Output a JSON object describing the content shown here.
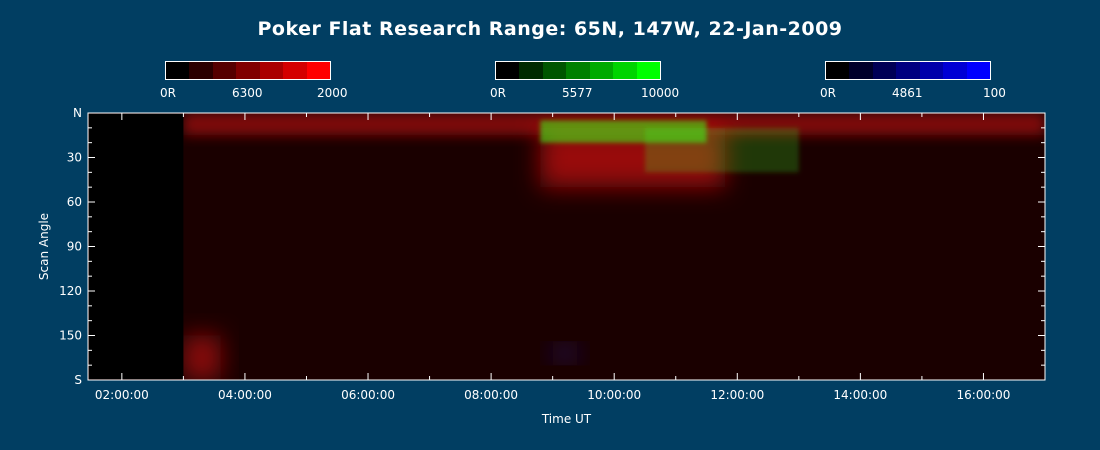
{
  "title": "Poker Flat Research Range: 65N, 147W, 22-Jan-2009",
  "colorbars": [
    {
      "name": "red",
      "labels": [
        "0R",
        "6300",
        "2000"
      ],
      "colors": [
        "#000000",
        "#2a0000",
        "#550000",
        "#800000",
        "#aa0000",
        "#d40000",
        "#ff0000"
      ]
    },
    {
      "name": "green",
      "labels": [
        "0R",
        "5577",
        "10000"
      ],
      "colors": [
        "#000000",
        "#002a00",
        "#005500",
        "#008000",
        "#00aa00",
        "#00d400",
        "#00ff00"
      ]
    },
    {
      "name": "blue",
      "labels": [
        "0R",
        "4861",
        "100"
      ],
      "colors": [
        "#000000",
        "#00002a",
        "#000055",
        "#000080",
        "#0000aa",
        "#0000d4",
        "#0000ff"
      ]
    }
  ],
  "chart_data": {
    "type": "heatmap",
    "title": "Poker Flat Research Range: 65N, 147W, 22-Jan-2009",
    "xlabel": "Time UT",
    "ylabel": "Scan Angle",
    "x_ticks": [
      "02:00:00",
      "04:00:00",
      "06:00:00",
      "08:00:00",
      "10:00:00",
      "12:00:00",
      "14:00:00",
      "16:00:00"
    ],
    "x_tick_hours": [
      2,
      4,
      6,
      8,
      10,
      12,
      14,
      16
    ],
    "x_minor_tick_hours": [
      3,
      5,
      7,
      9,
      11,
      13,
      15
    ],
    "xlim_hours": [
      1.45,
      17.0
    ],
    "y_ticks": [
      "N",
      "30",
      "60",
      "90",
      "120",
      "150",
      "S"
    ],
    "y_tick_values": [
      0,
      30,
      60,
      90,
      120,
      150,
      180
    ],
    "ylim": [
      0,
      180
    ],
    "no_data_until_hour": 3.0,
    "background_color": "#013e62",
    "features": [
      {
        "channel": "red",
        "hours": [
          3.0,
          17.0
        ],
        "scan_angle": [
          0,
          15
        ],
        "intensity": 0.8
      },
      {
        "channel": "red",
        "hours": [
          8.8,
          11.8
        ],
        "scan_angle": [
          10,
          50
        ],
        "intensity": 1.0
      },
      {
        "channel": "green",
        "hours": [
          8.8,
          11.5
        ],
        "scan_angle": [
          5,
          20
        ],
        "intensity": 1.0
      },
      {
        "channel": "green",
        "hours": [
          10.5,
          13.0
        ],
        "scan_angle": [
          10,
          40
        ],
        "intensity": 0.4
      },
      {
        "channel": "red",
        "hours": [
          3.0,
          3.6
        ],
        "scan_angle": [
          150,
          180
        ],
        "intensity": 0.9
      },
      {
        "channel": "blue",
        "hours": [
          9.0,
          9.4
        ],
        "scan_angle": [
          158,
          166
        ],
        "intensity": 0.7
      }
    ]
  }
}
